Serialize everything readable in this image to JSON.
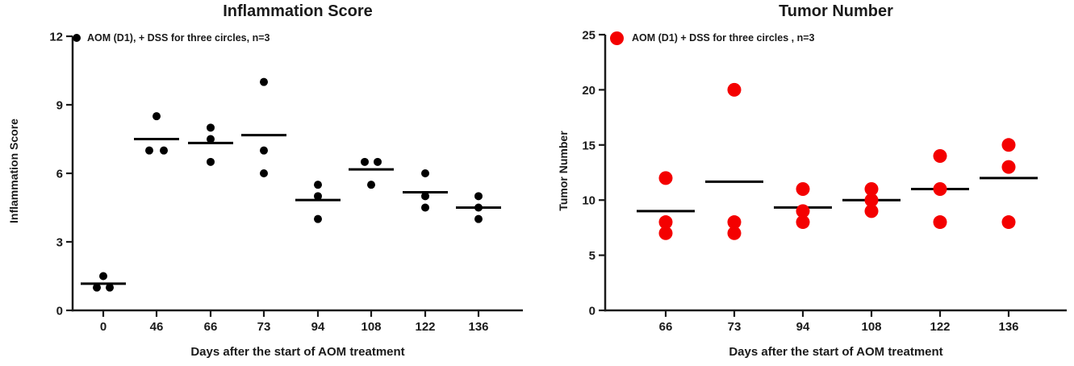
{
  "figure_title": "",
  "chart_data": [
    {
      "type": "scatter",
      "title": "Inflammation Score",
      "ylabel": "Inflammation Score",
      "xlabel": "Days after the start of AOM treatment",
      "legend": "AOM (D1), + DSS for three circles, n=3",
      "marker_color": "#000000",
      "mean_line_color": "#000000",
      "axis_color": "#1a1a1a",
      "ylim": [
        0,
        12
      ],
      "y_ticks": [
        0,
        3,
        6,
        9,
        12
      ],
      "grid": "off",
      "legend_position": "top-left-inside",
      "categories": [
        "0",
        "46",
        "66",
        "73",
        "94",
        "108",
        "122",
        "136"
      ],
      "groups": [
        {
          "day": "0",
          "values": [
            1.5,
            1,
            1
          ],
          "jitter": [
            0,
            -8,
            8
          ],
          "mean": 1.17
        },
        {
          "day": "46",
          "values": [
            8.5,
            7,
            7
          ],
          "jitter": [
            0,
            -9,
            9
          ],
          "mean": 7.5
        },
        {
          "day": "66",
          "values": [
            8,
            7.5,
            6.5
          ],
          "jitter": [
            0,
            0,
            0
          ],
          "mean": 7.33
        },
        {
          "day": "73",
          "values": [
            10,
            7,
            6
          ],
          "jitter": [
            0,
            0,
            0
          ],
          "mean": 7.67
        },
        {
          "day": "94",
          "values": [
            5.5,
            5,
            4
          ],
          "jitter": [
            0,
            0,
            0
          ],
          "mean": 4.83
        },
        {
          "day": "108",
          "values": [
            6.5,
            6.5,
            5.5
          ],
          "jitter": [
            -8,
            8,
            0
          ],
          "mean": 6.17
        },
        {
          "day": "122",
          "values": [
            6,
            5,
            4.5
          ],
          "jitter": [
            0,
            0,
            0
          ],
          "mean": 5.17
        },
        {
          "day": "136",
          "values": [
            5,
            4.5,
            4
          ],
          "jitter": [
            0,
            0,
            0
          ],
          "mean": 4.5
        }
      ]
    },
    {
      "type": "scatter",
      "title": "Tumor Number",
      "ylabel": "Tumor Number",
      "xlabel": "Days after the start of AOM treatment",
      "legend": "AOM (D1) + DSS for three circles , n=3",
      "marker_color": "#f40000",
      "mean_line_color": "#000000",
      "axis_color": "#1a1a1a",
      "ylim": [
        0,
        25
      ],
      "y_ticks": [
        0,
        5,
        10,
        15,
        20,
        25
      ],
      "grid": "off",
      "legend_position": "top-left-inside",
      "categories": [
        "66",
        "73",
        "94",
        "108",
        "122",
        "136"
      ],
      "groups": [
        {
          "day": "66",
          "values": [
            12,
            8,
            7
          ],
          "jitter": [
            0,
            0,
            0
          ],
          "mean": 9
        },
        {
          "day": "73",
          "values": [
            20,
            8,
            7
          ],
          "jitter": [
            0,
            0,
            0
          ],
          "mean": 11.67
        },
        {
          "day": "94",
          "values": [
            11,
            9,
            8
          ],
          "jitter": [
            0,
            0,
            0
          ],
          "mean": 9.33
        },
        {
          "day": "108",
          "values": [
            11,
            10,
            9
          ],
          "jitter": [
            0,
            0,
            0
          ],
          "mean": 10
        },
        {
          "day": "122",
          "values": [
            14,
            11,
            8
          ],
          "jitter": [
            0,
            0,
            0
          ],
          "mean": 11
        },
        {
          "day": "136",
          "values": [
            15,
            13,
            8
          ],
          "jitter": [
            0,
            0,
            0
          ],
          "mean": 12
        }
      ]
    }
  ]
}
